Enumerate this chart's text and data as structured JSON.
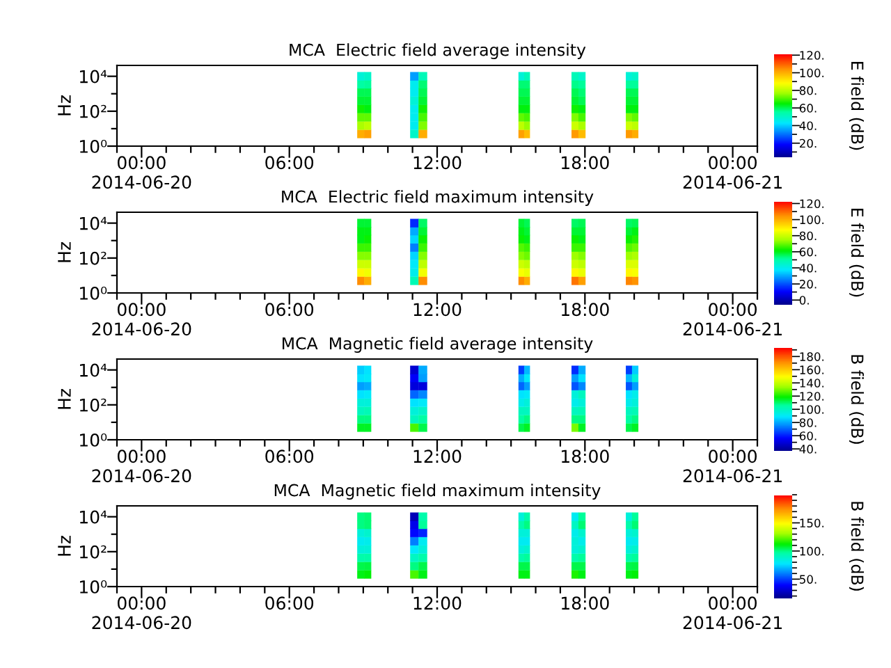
{
  "chart_data": [
    {
      "type": "scatter",
      "title": "MCA  Electric field average intensity",
      "ylabel": "Hz",
      "clabel": "E field (dB)",
      "marker": "square",
      "log": "y",
      "xlim": [
        -1,
        25
      ],
      "xticks": [
        {
          "value": -1,
          "label": null
        },
        {
          "value": 0,
          "label": "00:00\n2014-06-20"
        },
        {
          "value": 1,
          "label": null
        },
        {
          "value": 2,
          "label": null
        },
        {
          "value": 3,
          "label": null
        },
        {
          "value": 4,
          "label": null
        },
        {
          "value": 5,
          "label": null
        },
        {
          "value": 6,
          "label": "06:00"
        },
        {
          "value": 7,
          "label": null
        },
        {
          "value": 8,
          "label": null
        },
        {
          "value": 9,
          "label": null
        },
        {
          "value": 10,
          "label": null
        },
        {
          "value": 11,
          "label": null
        },
        {
          "value": 12,
          "label": "12:00"
        },
        {
          "value": 13,
          "label": null
        },
        {
          "value": 14,
          "label": null
        },
        {
          "value": 15,
          "label": null
        },
        {
          "value": 16,
          "label": null
        },
        {
          "value": 17,
          "label": null
        },
        {
          "value": 18,
          "label": "18:00"
        },
        {
          "value": 19,
          "label": null
        },
        {
          "value": 20,
          "label": null
        },
        {
          "value": 21,
          "label": null
        },
        {
          "value": 22,
          "label": null
        },
        {
          "value": 23,
          "label": null
        },
        {
          "value": 24,
          "label": "00:00\n2014-06-21"
        },
        {
          "value": 25,
          "label": null
        }
      ],
      "ylim": [
        1,
        42000
      ],
      "yticks": [
        {
          "value": 1,
          "label": "10⁰"
        },
        {
          "value": 10,
          "label": null
        },
        {
          "value": 100,
          "label": "10²"
        },
        {
          "value": 1000,
          "label": null
        },
        {
          "value": 10000,
          "label": "10⁴"
        }
      ],
      "clim": [
        4,
        121
      ],
      "cticks": [
        {
          "value": 10,
          "label": null
        },
        {
          "value": 20,
          "label": "20."
        },
        {
          "value": 30,
          "label": null
        },
        {
          "value": 40,
          "label": "40."
        },
        {
          "value": 50,
          "label": null
        },
        {
          "value": 60,
          "label": "60."
        },
        {
          "value": 70,
          "label": null
        },
        {
          "value": 80,
          "label": "80."
        },
        {
          "value": 90,
          "label": null
        },
        {
          "value": 100,
          "label": "100."
        },
        {
          "value": 110,
          "label": null
        },
        {
          "value": 120,
          "label": "120."
        }
      ],
      "x": [
        8.9,
        8.9,
        8.9,
        8.9,
        8.9,
        8.9,
        8.9,
        8.9,
        9.18,
        9.18,
        9.18,
        9.18,
        9.18,
        9.18,
        9.18,
        9.18,
        11.08,
        11.08,
        11.08,
        11.08,
        11.08,
        11.08,
        11.08,
        11.08,
        11.42,
        11.42,
        11.42,
        11.42,
        11.42,
        11.42,
        11.42,
        11.42,
        15.42,
        15.42,
        15.42,
        15.42,
        15.42,
        15.42,
        15.42,
        15.42,
        15.65,
        15.65,
        15.65,
        15.65,
        15.65,
        15.65,
        15.65,
        15.65,
        17.6,
        17.6,
        17.6,
        17.6,
        17.6,
        17.6,
        17.6,
        17.6,
        17.88,
        17.88,
        17.88,
        17.88,
        17.88,
        17.88,
        17.88,
        17.88,
        19.79,
        19.79,
        19.79,
        19.79,
        19.79,
        19.79,
        19.79,
        19.79,
        20.04,
        20.04,
        20.04,
        20.04,
        20.04,
        20.04,
        20.04,
        20.04
      ],
      "values": [
        5,
        15,
        45,
        135,
        400,
        1200,
        3500,
        10000,
        5,
        15,
        45,
        135,
        400,
        1200,
        3500,
        10000,
        5,
        15,
        45,
        135,
        400,
        1200,
        3500,
        10000,
        5,
        15,
        45,
        135,
        400,
        1200,
        3500,
        10000,
        5,
        15,
        45,
        135,
        400,
        1200,
        3500,
        10000,
        5,
        15,
        45,
        135,
        400,
        1200,
        3500,
        10000,
        5,
        15,
        45,
        135,
        400,
        1200,
        3500,
        10000,
        5,
        15,
        45,
        135,
        400,
        1200,
        3500,
        10000,
        5,
        15,
        45,
        135,
        400,
        1200,
        3500,
        10000,
        5,
        15,
        45,
        135,
        400,
        1200,
        3500,
        10000
      ],
      "cvalues": [
        100,
        78,
        72,
        66,
        62,
        60,
        55,
        48,
        102,
        80,
        72,
        64,
        62,
        60,
        56,
        50,
        50,
        45,
        45,
        45,
        48,
        45,
        45,
        35,
        100,
        74,
        70,
        66,
        62,
        60,
        58,
        52,
        102,
        80,
        72,
        64,
        62,
        60,
        58,
        48,
        98,
        76,
        70,
        64,
        62,
        60,
        58,
        52,
        103,
        82,
        74,
        66,
        62,
        60,
        57,
        52,
        98,
        78,
        70,
        64,
        60,
        58,
        56,
        50,
        103,
        82,
        74,
        64,
        62,
        60,
        56,
        48,
        100,
        80,
        72,
        64,
        62,
        60,
        56,
        50
      ]
    },
    {
      "type": "scatter",
      "title": "MCA  Electric field maximum intensity",
      "ylabel": "Hz",
      "clabel": "E field (dB)",
      "marker": "square",
      "log": "y",
      "xlim": [
        -1,
        25
      ],
      "xticks": [
        {
          "value": -1,
          "label": null
        },
        {
          "value": 0,
          "label": "00:00\n2014-06-20"
        },
        {
          "value": 1,
          "label": null
        },
        {
          "value": 2,
          "label": null
        },
        {
          "value": 3,
          "label": null
        },
        {
          "value": 4,
          "label": null
        },
        {
          "value": 5,
          "label": null
        },
        {
          "value": 6,
          "label": "06:00"
        },
        {
          "value": 7,
          "label": null
        },
        {
          "value": 8,
          "label": null
        },
        {
          "value": 9,
          "label": null
        },
        {
          "value": 10,
          "label": null
        },
        {
          "value": 11,
          "label": null
        },
        {
          "value": 12,
          "label": "12:00"
        },
        {
          "value": 13,
          "label": null
        },
        {
          "value": 14,
          "label": null
        },
        {
          "value": 15,
          "label": null
        },
        {
          "value": 16,
          "label": null
        },
        {
          "value": 17,
          "label": null
        },
        {
          "value": 18,
          "label": "18:00"
        },
        {
          "value": 19,
          "label": null
        },
        {
          "value": 20,
          "label": null
        },
        {
          "value": 21,
          "label": null
        },
        {
          "value": 22,
          "label": null
        },
        {
          "value": 23,
          "label": null
        },
        {
          "value": 24,
          "label": "00:00\n2014-06-21"
        },
        {
          "value": 25,
          "label": null
        }
      ],
      "ylim": [
        1,
        42000
      ],
      "yticks": [
        {
          "value": 1,
          "label": "10⁰"
        },
        {
          "value": 10,
          "label": null
        },
        {
          "value": 100,
          "label": "10²"
        },
        {
          "value": 1000,
          "label": null
        },
        {
          "value": 10000,
          "label": "10⁴"
        }
      ],
      "clim": [
        -5,
        123
      ],
      "cticks": [
        {
          "value": 0,
          "label": "0."
        },
        {
          "value": 10,
          "label": null
        },
        {
          "value": 20,
          "label": "20."
        },
        {
          "value": 30,
          "label": null
        },
        {
          "value": 40,
          "label": "40."
        },
        {
          "value": 50,
          "label": null
        },
        {
          "value": 60,
          "label": "60."
        },
        {
          "value": 70,
          "label": null
        },
        {
          "value": 80,
          "label": "80."
        },
        {
          "value": 90,
          "label": null
        },
        {
          "value": 100,
          "label": "100."
        },
        {
          "value": 110,
          "label": null
        },
        {
          "value": 120,
          "label": "120."
        }
      ],
      "x": [
        8.9,
        8.9,
        8.9,
        8.9,
        8.9,
        8.9,
        8.9,
        8.9,
        9.18,
        9.18,
        9.18,
        9.18,
        9.18,
        9.18,
        9.18,
        9.18,
        11.08,
        11.08,
        11.08,
        11.08,
        11.08,
        11.08,
        11.08,
        11.08,
        11.42,
        11.42,
        11.42,
        11.42,
        11.42,
        11.42,
        11.42,
        11.42,
        15.42,
        15.42,
        15.42,
        15.42,
        15.42,
        15.42,
        15.42,
        15.42,
        15.65,
        15.65,
        15.65,
        15.65,
        15.65,
        15.65,
        15.65,
        15.65,
        17.6,
        17.6,
        17.6,
        17.6,
        17.6,
        17.6,
        17.6,
        17.6,
        17.88,
        17.88,
        17.88,
        17.88,
        17.88,
        17.88,
        17.88,
        17.88,
        19.79,
        19.79,
        19.79,
        19.79,
        19.79,
        19.79,
        19.79,
        19.79,
        20.04,
        20.04,
        20.04,
        20.04,
        20.04,
        20.04,
        20.04,
        20.04
      ],
      "values": [
        5,
        15,
        45,
        135,
        400,
        1200,
        3500,
        10000,
        5,
        15,
        45,
        135,
        400,
        1200,
        3500,
        10000,
        5,
        15,
        45,
        135,
        400,
        1200,
        3500,
        10000,
        5,
        15,
        45,
        135,
        400,
        1200,
        3500,
        10000,
        5,
        15,
        45,
        135,
        400,
        1200,
        3500,
        10000,
        5,
        15,
        45,
        135,
        400,
        1200,
        3500,
        10000,
        5,
        15,
        45,
        135,
        400,
        1200,
        3500,
        10000,
        5,
        15,
        45,
        135,
        400,
        1200,
        3500,
        10000,
        5,
        15,
        45,
        135,
        400,
        1200,
        3500,
        10000,
        5,
        15,
        45,
        135,
        400,
        1200,
        3500,
        10000
      ],
      "cvalues": [
        105,
        88,
        80,
        72,
        66,
        60,
        60,
        58,
        100,
        85,
        80,
        72,
        66,
        62,
        60,
        58,
        48,
        40,
        38,
        35,
        25,
        35,
        30,
        15,
        105,
        85,
        78,
        72,
        66,
        62,
        58,
        55,
        105,
        86,
        80,
        72,
        68,
        62,
        60,
        58,
        100,
        84,
        78,
        70,
        66,
        60,
        58,
        56,
        108,
        88,
        80,
        74,
        66,
        62,
        58,
        55,
        102,
        84,
        78,
        72,
        66,
        60,
        58,
        56,
        106,
        88,
        82,
        74,
        68,
        62,
        58,
        55,
        104,
        86,
        82,
        76,
        70,
        64,
        60,
        56
      ]
    },
    {
      "type": "scatter",
      "title": "MCA  Magnetic field average intensity",
      "ylabel": "Hz",
      "clabel": "B field (dB)",
      "marker": "square",
      "log": "y",
      "xlim": [
        -1,
        25
      ],
      "xticks": [
        {
          "value": -1,
          "label": null
        },
        {
          "value": 0,
          "label": "00:00\n2014-06-20"
        },
        {
          "value": 1,
          "label": null
        },
        {
          "value": 2,
          "label": null
        },
        {
          "value": 3,
          "label": null
        },
        {
          "value": 4,
          "label": null
        },
        {
          "value": 5,
          "label": null
        },
        {
          "value": 6,
          "label": "06:00"
        },
        {
          "value": 7,
          "label": null
        },
        {
          "value": 8,
          "label": null
        },
        {
          "value": 9,
          "label": null
        },
        {
          "value": 10,
          "label": null
        },
        {
          "value": 11,
          "label": null
        },
        {
          "value": 12,
          "label": "12:00"
        },
        {
          "value": 13,
          "label": null
        },
        {
          "value": 14,
          "label": null
        },
        {
          "value": 15,
          "label": null
        },
        {
          "value": 16,
          "label": null
        },
        {
          "value": 17,
          "label": null
        },
        {
          "value": 18,
          "label": "18:00"
        },
        {
          "value": 19,
          "label": null
        },
        {
          "value": 20,
          "label": null
        },
        {
          "value": 21,
          "label": null
        },
        {
          "value": 22,
          "label": null
        },
        {
          "value": 23,
          "label": null
        },
        {
          "value": 24,
          "label": "00:00\n2014-06-21"
        },
        {
          "value": 25,
          "label": null
        }
      ],
      "ylim": [
        1,
        42000
      ],
      "yticks": [
        {
          "value": 1,
          "label": "10⁰"
        },
        {
          "value": 10,
          "label": null
        },
        {
          "value": 100,
          "label": "10²"
        },
        {
          "value": 1000,
          "label": null
        },
        {
          "value": 10000,
          "label": "10⁴"
        }
      ],
      "clim": [
        37,
        193
      ],
      "cticks": [
        {
          "value": 40,
          "label": "40."
        },
        {
          "value": 50,
          "label": null
        },
        {
          "value": 60,
          "label": "60."
        },
        {
          "value": 70,
          "label": null
        },
        {
          "value": 80,
          "label": "80."
        },
        {
          "value": 90,
          "label": null
        },
        {
          "value": 100,
          "label": "100."
        },
        {
          "value": 110,
          "label": null
        },
        {
          "value": 120,
          "label": "120."
        },
        {
          "value": 130,
          "label": null
        },
        {
          "value": 140,
          "label": "140."
        },
        {
          "value": 150,
          "label": null
        },
        {
          "value": 160,
          "label": "160."
        },
        {
          "value": 170,
          "label": null
        },
        {
          "value": 180,
          "label": "180."
        },
        {
          "value": 190,
          "label": null
        }
      ],
      "x": [
        8.9,
        8.9,
        8.9,
        8.9,
        8.9,
        8.9,
        8.9,
        8.9,
        9.18,
        9.18,
        9.18,
        9.18,
        9.18,
        9.18,
        9.18,
        9.18,
        11.08,
        11.08,
        11.08,
        11.08,
        11.08,
        11.08,
        11.08,
        11.08,
        11.42,
        11.42,
        11.42,
        11.42,
        11.42,
        11.42,
        11.42,
        11.42,
        15.42,
        15.42,
        15.42,
        15.42,
        15.42,
        15.42,
        15.42,
        15.42,
        15.65,
        15.65,
        15.65,
        15.65,
        15.65,
        15.65,
        15.65,
        15.65,
        17.6,
        17.6,
        17.6,
        17.6,
        17.6,
        17.6,
        17.6,
        17.6,
        17.88,
        17.88,
        17.88,
        17.88,
        17.88,
        17.88,
        17.88,
        17.88,
        19.79,
        19.79,
        19.79,
        19.79,
        19.79,
        19.79,
        19.79,
        19.79,
        20.04,
        20.04,
        20.04,
        20.04,
        20.04,
        20.04,
        20.04,
        20.04
      ],
      "values": [
        5,
        15,
        45,
        135,
        400,
        1200,
        3500,
        10000,
        5,
        15,
        45,
        135,
        400,
        1200,
        3500,
        10000,
        5,
        15,
        45,
        135,
        400,
        1200,
        3500,
        10000,
        5,
        15,
        45,
        135,
        400,
        1200,
        3500,
        10000,
        5,
        15,
        45,
        135,
        400,
        1200,
        3500,
        10000,
        5,
        15,
        45,
        135,
        400,
        1200,
        3500,
        10000,
        5,
        15,
        45,
        135,
        400,
        1200,
        3500,
        10000,
        5,
        15,
        45,
        135,
        400,
        1200,
        3500,
        10000,
        5,
        15,
        45,
        135,
        400,
        1200,
        3500,
        10000,
        5,
        15,
        45,
        135,
        400,
        1200,
        3500,
        10000
      ],
      "cvalues": [
        115,
        108,
        100,
        95,
        88,
        78,
        88,
        85,
        115,
        108,
        102,
        95,
        90,
        80,
        90,
        88,
        125,
        100,
        95,
        88,
        70,
        50,
        55,
        48,
        112,
        105,
        98,
        90,
        75,
        50,
        78,
        80,
        112,
        105,
        100,
        92,
        88,
        70,
        80,
        65,
        115,
        108,
        100,
        95,
        90,
        78,
        90,
        82,
        130,
        108,
        100,
        92,
        95,
        68,
        78,
        62,
        115,
        108,
        102,
        95,
        100,
        75,
        88,
        80,
        112,
        105,
        100,
        92,
        88,
        68,
        82,
        65,
        115,
        108,
        102,
        95,
        92,
        78,
        95,
        85
      ]
    },
    {
      "type": "scatter",
      "title": "MCA  Magnetic field maximum intensity",
      "ylabel": "Hz",
      "clabel": "B field (dB)",
      "marker": "square",
      "log": "y",
      "xlim": [
        -1,
        25
      ],
      "xticks": [
        {
          "value": -1,
          "label": null
        },
        {
          "value": 0,
          "label": "00:00\n2014-06-20"
        },
        {
          "value": 1,
          "label": null
        },
        {
          "value": 2,
          "label": null
        },
        {
          "value": 3,
          "label": null
        },
        {
          "value": 4,
          "label": null
        },
        {
          "value": 5,
          "label": null
        },
        {
          "value": 6,
          "label": "06:00"
        },
        {
          "value": 7,
          "label": null
        },
        {
          "value": 8,
          "label": null
        },
        {
          "value": 9,
          "label": null
        },
        {
          "value": 10,
          "label": null
        },
        {
          "value": 11,
          "label": null
        },
        {
          "value": 12,
          "label": "12:00"
        },
        {
          "value": 13,
          "label": null
        },
        {
          "value": 14,
          "label": null
        },
        {
          "value": 15,
          "label": null
        },
        {
          "value": 16,
          "label": null
        },
        {
          "value": 17,
          "label": null
        },
        {
          "value": 18,
          "label": "18:00"
        },
        {
          "value": 19,
          "label": null
        },
        {
          "value": 20,
          "label": null
        },
        {
          "value": 21,
          "label": null
        },
        {
          "value": 22,
          "label": null
        },
        {
          "value": 23,
          "label": null
        },
        {
          "value": 24,
          "label": "00:00\n2014-06-21"
        },
        {
          "value": 25,
          "label": null
        }
      ],
      "ylim": [
        1,
        42000
      ],
      "yticks": [
        {
          "value": 1,
          "label": "10⁰"
        },
        {
          "value": 10,
          "label": null
        },
        {
          "value": 100,
          "label": "10²"
        },
        {
          "value": 1000,
          "label": null
        },
        {
          "value": 10000,
          "label": "10⁴"
        }
      ],
      "clim": [
        17,
        200
      ],
      "cticks": [
        {
          "value": 20,
          "label": null
        },
        {
          "value": 30,
          "label": null
        },
        {
          "value": 40,
          "label": null
        },
        {
          "value": 50,
          "label": "50."
        },
        {
          "value": 60,
          "label": null
        },
        {
          "value": 70,
          "label": null
        },
        {
          "value": 80,
          "label": null
        },
        {
          "value": 90,
          "label": null
        },
        {
          "value": 100,
          "label": "100."
        },
        {
          "value": 110,
          "label": null
        },
        {
          "value": 120,
          "label": null
        },
        {
          "value": 130,
          "label": null
        },
        {
          "value": 140,
          "label": null
        },
        {
          "value": 150,
          "label": "150."
        },
        {
          "value": 160,
          "label": null
        },
        {
          "value": 170,
          "label": null
        },
        {
          "value": 180,
          "label": null
        },
        {
          "value": 190,
          "label": null
        },
        {
          "value": 200,
          "label": null
        }
      ],
      "x": [
        8.9,
        8.9,
        8.9,
        8.9,
        8.9,
        8.9,
        8.9,
        8.9,
        9.18,
        9.18,
        9.18,
        9.18,
        9.18,
        9.18,
        9.18,
        9.18,
        11.08,
        11.08,
        11.08,
        11.08,
        11.08,
        11.08,
        11.08,
        11.08,
        11.42,
        11.42,
        11.42,
        11.42,
        11.42,
        11.42,
        11.42,
        11.42,
        15.42,
        15.42,
        15.42,
        15.42,
        15.42,
        15.42,
        15.42,
        15.42,
        15.65,
        15.65,
        15.65,
        15.65,
        15.65,
        15.65,
        15.65,
        15.65,
        17.6,
        17.6,
        17.6,
        17.6,
        17.6,
        17.6,
        17.6,
        17.6,
        17.88,
        17.88,
        17.88,
        17.88,
        17.88,
        17.88,
        17.88,
        17.88,
        19.79,
        19.79,
        19.79,
        19.79,
        19.79,
        19.79,
        19.79,
        19.79,
        20.04,
        20.04,
        20.04,
        20.04,
        20.04,
        20.04,
        20.04,
        20.04
      ],
      "values": [
        5,
        15,
        45,
        135,
        400,
        1200,
        3500,
        10000,
        5,
        15,
        45,
        135,
        400,
        1200,
        3500,
        10000,
        5,
        15,
        45,
        135,
        400,
        1200,
        3500,
        10000,
        5,
        15,
        45,
        135,
        400,
        1200,
        3500,
        10000,
        5,
        15,
        45,
        135,
        400,
        1200,
        3500,
        10000,
        5,
        15,
        45,
        135,
        400,
        1200,
        3500,
        10000,
        5,
        15,
        45,
        135,
        400,
        1200,
        3500,
        10000,
        5,
        15,
        45,
        135,
        400,
        1200,
        3500,
        10000,
        5,
        15,
        45,
        135,
        400,
        1200,
        3500,
        10000,
        5,
        15,
        45,
        135,
        400,
        1200,
        3500,
        10000
      ],
      "cvalues": [
        110,
        105,
        95,
        85,
        80,
        85,
        100,
        100,
        112,
        106,
        96,
        86,
        82,
        88,
        102,
        102,
        120,
        100,
        90,
        78,
        60,
        40,
        35,
        25,
        110,
        105,
        95,
        85,
        80,
        45,
        98,
        95,
        110,
        105,
        95,
        85,
        80,
        85,
        95,
        85,
        110,
        105,
        98,
        88,
        80,
        85,
        100,
        95,
        115,
        105,
        95,
        85,
        85,
        82,
        90,
        80,
        110,
        105,
        98,
        88,
        82,
        88,
        102,
        98,
        110,
        105,
        95,
        85,
        80,
        85,
        95,
        85,
        112,
        106,
        98,
        88,
        82,
        88,
        102,
        98
      ]
    }
  ]
}
